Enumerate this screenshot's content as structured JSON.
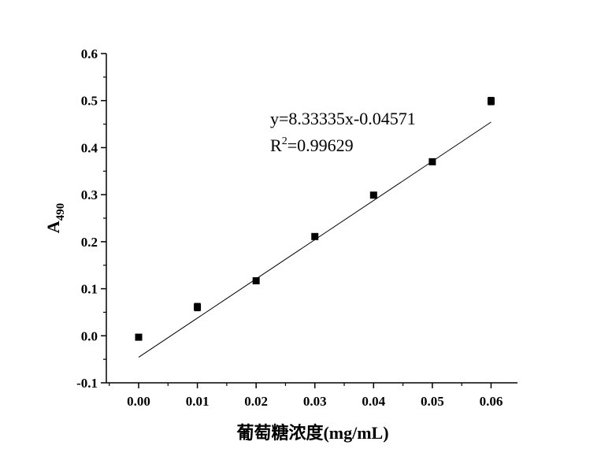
{
  "chart_data": {
    "type": "scatter",
    "title": "",
    "xlabel": "葡萄糖浓度(mg/mL)",
    "ylabel": {
      "main": "A",
      "sub": "490"
    },
    "xlim": [
      -0.0055,
      0.0645
    ],
    "ylim": [
      -0.1,
      0.6
    ],
    "x_ticks": [
      "0.00",
      "0.01",
      "0.02",
      "0.03",
      "0.04",
      "0.05",
      "0.06"
    ],
    "x_tick_values": [
      0.0,
      0.01,
      0.02,
      0.03,
      0.04,
      0.05,
      0.06
    ],
    "y_ticks": [
      "-0.1",
      "0.0",
      "0.1",
      "0.2",
      "0.3",
      "0.4",
      "0.5",
      "0.6"
    ],
    "y_tick_values": [
      -0.1,
      0.0,
      0.1,
      0.2,
      0.3,
      0.4,
      0.5,
      0.6
    ],
    "grid": false,
    "legend": "none",
    "series": [
      {
        "x": [
          0.0,
          0.01,
          0.02,
          0.03,
          0.04,
          0.05,
          0.06
        ],
        "y": [
          -0.003,
          0.061,
          0.117,
          0.211,
          0.299,
          0.37,
          0.499
        ],
        "error": [
          0.006,
          0.008,
          0.004,
          0.003,
          0.003,
          0.003,
          0.008
        ],
        "marker": "square",
        "color": "#000000"
      }
    ],
    "fit_line": {
      "slope": 8.33335,
      "intercept": -0.04571,
      "x_range": [
        0.0,
        0.06
      ],
      "color": "#000000"
    },
    "annotation": {
      "equation": "y=8.33335x-0.04571",
      "r2_base": "R",
      "r2_exp": "2",
      "r2_value": "=0.99629"
    }
  }
}
